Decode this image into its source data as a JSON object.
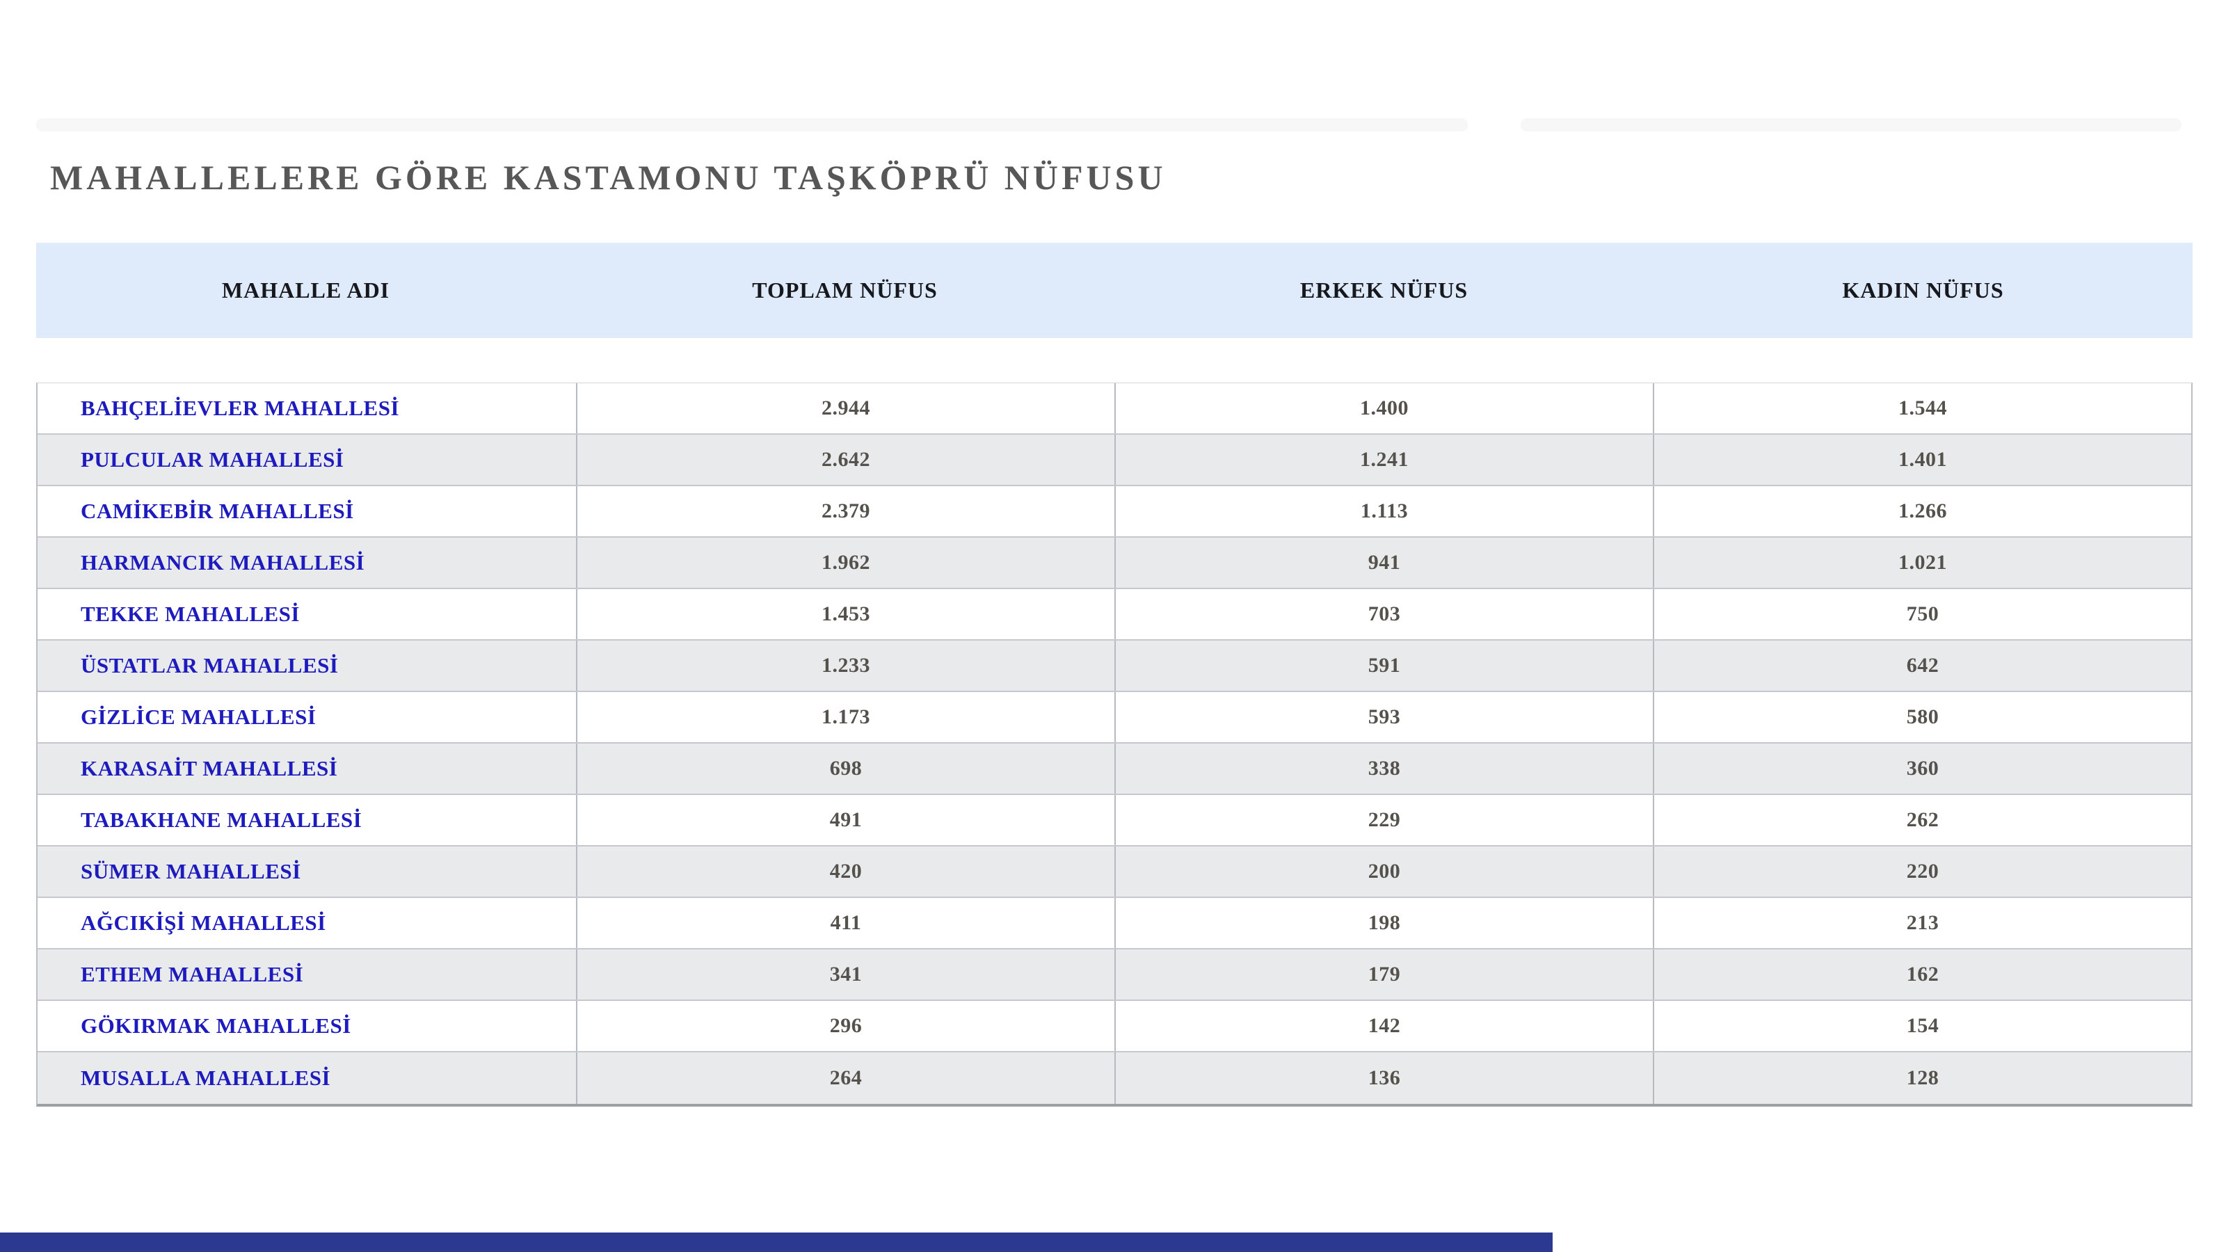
{
  "page": {
    "title": "MAHALLELERE GÖRE KASTAMONU TAŞKÖPRÜ NÜFUSU"
  },
  "table": {
    "headers": [
      "MAHALLE ADI",
      "TOPLAM NÜFUS",
      "ERKEK NÜFUS",
      "KADIN NÜFUS"
    ],
    "rows": [
      {
        "name": "BAHÇELİEVLER MAHALLESİ",
        "total": "2.944",
        "male": "1.400",
        "female": "1.544"
      },
      {
        "name": "PULCULAR MAHALLESİ",
        "total": "2.642",
        "male": "1.241",
        "female": "1.401"
      },
      {
        "name": "CAMİKEBİR MAHALLESİ",
        "total": "2.379",
        "male": "1.113",
        "female": "1.266"
      },
      {
        "name": "HARMANCIK MAHALLESİ",
        "total": "1.962",
        "male": "941",
        "female": "1.021"
      },
      {
        "name": "TEKKE MAHALLESİ",
        "total": "1.453",
        "male": "703",
        "female": "750"
      },
      {
        "name": "ÜSTATLAR MAHALLESİ",
        "total": "1.233",
        "male": "591",
        "female": "642"
      },
      {
        "name": "GİZLİCE MAHALLESİ",
        "total": "1.173",
        "male": "593",
        "female": "580"
      },
      {
        "name": "KARASAİT MAHALLESİ",
        "total": "698",
        "male": "338",
        "female": "360"
      },
      {
        "name": "TABAKHANE MAHALLESİ",
        "total": "491",
        "male": "229",
        "female": "262"
      },
      {
        "name": "SÜMER MAHALLESİ",
        "total": "420",
        "male": "200",
        "female": "220"
      },
      {
        "name": "AĞCIKİŞİ MAHALLESİ",
        "total": "411",
        "male": "198",
        "female": "213"
      },
      {
        "name": "ETHEM MAHALLESİ",
        "total": "341",
        "male": "179",
        "female": "162"
      },
      {
        "name": "GÖKIRMAK MAHALLESİ",
        "total": "296",
        "male": "142",
        "female": "154"
      },
      {
        "name": "MUSALLA MAHALLESİ",
        "total": "264",
        "male": "136",
        "female": "128"
      }
    ]
  },
  "colors": {
    "header_bg": "#dfeafb",
    "link_blue": "#1e1bbe",
    "row_alt_bg": "#e9eaec",
    "title_gray": "#575757",
    "bottom_bar_navy": "#2b3990"
  }
}
